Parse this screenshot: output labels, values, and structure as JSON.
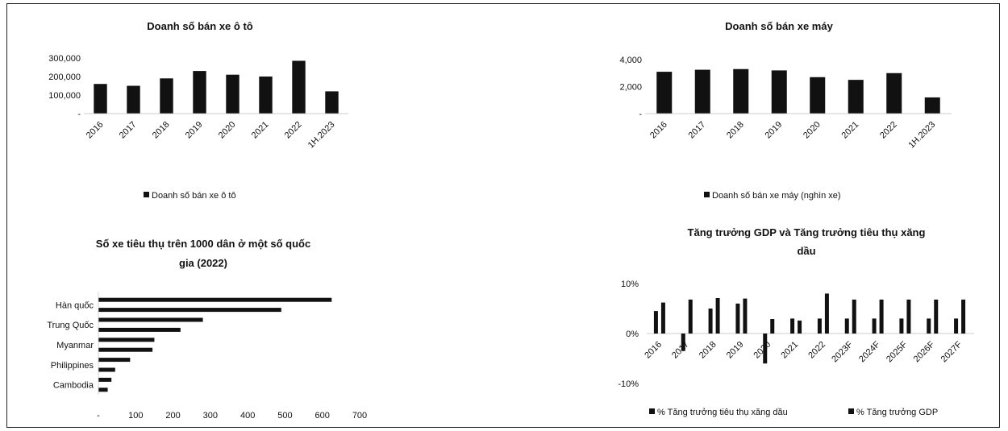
{
  "chart_data": [
    {
      "id": "car",
      "type": "bar",
      "title": "Doanh số bán xe ô tô",
      "categories": [
        "2016",
        "2017",
        "2018",
        "2019",
        "2020",
        "2021",
        "2022",
        "1H.2023"
      ],
      "series": [
        {
          "name": "Doanh số bán xe ô tô",
          "values": [
            160000,
            150000,
            190000,
            230000,
            210000,
            200000,
            285000,
            120000
          ]
        }
      ],
      "ylim": [
        0,
        300000
      ],
      "yticks": [
        "300,000",
        "200,000",
        "100,000",
        "-"
      ],
      "ytick_values": [
        300000,
        200000,
        100000,
        0
      ],
      "legend": "bottom",
      "grid": false
    },
    {
      "id": "moto",
      "type": "bar",
      "title": "Doanh số bán xe máy",
      "categories": [
        "2016",
        "2017",
        "2018",
        "2019",
        "2020",
        "2021",
        "2022",
        "1H.2023"
      ],
      "series": [
        {
          "name": "Doanh số bán xe máy (nghìn xe)",
          "values": [
            3100,
            3250,
            3300,
            3200,
            2700,
            2500,
            3000,
            1200
          ]
        }
      ],
      "ylim": [
        0,
        4000
      ],
      "yticks": [
        "4,000",
        "2,000",
        "-"
      ],
      "ytick_values": [
        4000,
        2000,
        0
      ],
      "legend": "bottom",
      "grid": false
    },
    {
      "id": "veh1000",
      "type": "bar",
      "orientation": "horizontal",
      "title_lines": [
        "Số xe tiêu thụ trên 1000 dân ở một số quốc",
        "gia (2022)"
      ],
      "labeled_categories": [
        "Hàn quốc",
        "Trung Quốc",
        "Myanmar",
        "Philippines",
        "Cambodia"
      ],
      "values": [
        625,
        490,
        280,
        220,
        150,
        145,
        85,
        45,
        35,
        25
      ],
      "xlim": [
        0,
        700
      ],
      "xticks": [
        "-",
        "100",
        "200",
        "300",
        "400",
        "500",
        "600",
        "700"
      ],
      "xtick_values": [
        0,
        100,
        200,
        300,
        400,
        500,
        600,
        700
      ],
      "grid": false
    },
    {
      "id": "gdp",
      "type": "bar",
      "title_lines": [
        "Tăng trưởng GDP và Tăng trưởng tiêu thụ xăng",
        "dầu"
      ],
      "categories": [
        "2016",
        "2017",
        "2018",
        "2019",
        "2020",
        "2021",
        "2022",
        "2023F",
        "2024F",
        "2025F",
        "2026F",
        "2027F"
      ],
      "series": [
        {
          "name": "% Tăng trưởng tiêu thụ xăng dầu",
          "values": [
            4.5,
            -3.5,
            5,
            6,
            -6,
            3,
            3,
            3,
            3,
            3,
            3,
            3
          ]
        },
        {
          "name": "% Tăng trưởng GDP",
          "values": [
            6.2,
            6.8,
            7.1,
            7,
            2.9,
            2.6,
            8,
            6.8,
            6.8,
            6.8,
            6.8,
            6.8
          ]
        }
      ],
      "ylim": [
        -10,
        10
      ],
      "yticks": [
        "10%",
        "0%",
        "-10%"
      ],
      "ytick_values": [
        10,
        0,
        -10
      ],
      "legend": "bottom",
      "grid": false
    }
  ]
}
